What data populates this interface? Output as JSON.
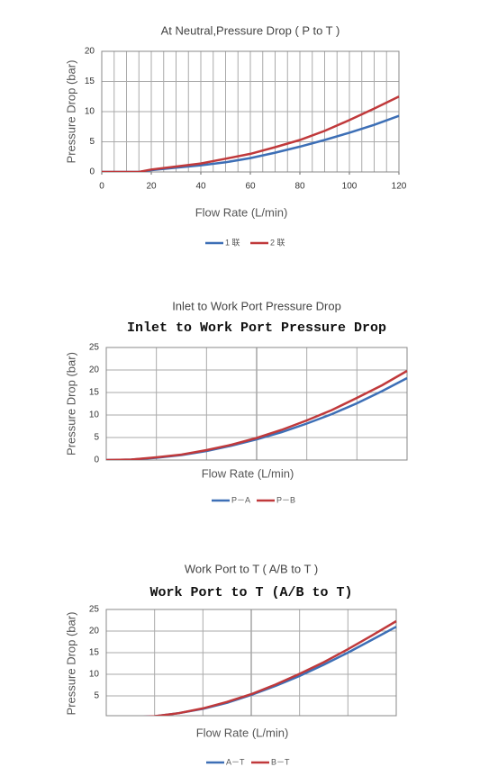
{
  "chart_data": [
    {
      "type": "line",
      "title": "At Neutral,Pressure Drop ( P to T )",
      "x_label": "Flow Rate (L/min)",
      "y_label": "Pressure Drop (bar)",
      "x": [
        0,
        15,
        20,
        30,
        40,
        50,
        60,
        70,
        80,
        90,
        100,
        110,
        120
      ],
      "series": [
        {
          "name": "1 联",
          "color": "#3d6fb6",
          "values": [
            0,
            0,
            0.3,
            0.7,
            1.1,
            1.6,
            2.3,
            3.2,
            4.2,
            5.3,
            6.5,
            7.8,
            9.3
          ]
        },
        {
          "name": "2 联",
          "color": "#c0393b",
          "values": [
            0,
            0,
            0.4,
            0.9,
            1.4,
            2.2,
            3.0,
            4.1,
            5.3,
            6.8,
            8.6,
            10.5,
            12.5
          ]
        }
      ],
      "xlim": [
        0,
        120
      ],
      "xticks": [
        0,
        20,
        40,
        60,
        80,
        100,
        120
      ],
      "ylim": [
        0,
        20
      ],
      "yticks": [
        0,
        5,
        10,
        15,
        20
      ],
      "grid": true
    },
    {
      "type": "line",
      "title": "Inlet to Work Port Pressure Drop",
      "subtitle": "Inlet to Work Port Pressure Drop",
      "x_label": "Flow Rate (L/min)",
      "y_label": "Pressure Drop (bar)",
      "categories": [
        null,
        null,
        null,
        null,
        null,
        null,
        null,
        null,
        null,
        null,
        null,
        null,
        null
      ],
      "series": [
        {
          "name": "P－A",
          "color": "#3d6fb6",
          "values": [
            0,
            0.1,
            0.5,
            1.1,
            2.0,
            3.2,
            4.6,
            6.2,
            8.1,
            10.2,
            12.6,
            15.3,
            18.2
          ]
        },
        {
          "name": "P－B",
          "color": "#c0393b",
          "values": [
            0,
            0.1,
            0.6,
            1.2,
            2.2,
            3.4,
            4.9,
            6.7,
            8.8,
            11.1,
            13.8,
            16.6,
            19.8
          ]
        }
      ],
      "ylim": [
        0,
        25
      ],
      "yticks": [
        0,
        5,
        10,
        15,
        20,
        25
      ],
      "grid": true
    },
    {
      "type": "line",
      "title": "Work Port to T ( A/B to T )",
      "subtitle": "Work Port to T (A/B to T)",
      "x_label": "Flow Rate (L/min)",
      "y_label": "Pressure Drop (bar)",
      "categories": [
        null,
        null,
        null,
        null,
        null,
        null,
        null,
        null,
        null,
        null,
        null,
        null,
        null
      ],
      "series": [
        {
          "name": "A－T",
          "color": "#3d6fb6",
          "values": [
            0,
            0,
            0.3,
            1.0,
            2.0,
            3.4,
            5.2,
            7.3,
            9.6,
            12.2,
            15.0,
            18.0,
            21.0
          ]
        },
        {
          "name": "B－T",
          "color": "#c0393b",
          "values": [
            0,
            0,
            0.3,
            1.0,
            2.1,
            3.6,
            5.4,
            7.6,
            10.1,
            12.8,
            15.8,
            19.0,
            22.3
          ]
        }
      ],
      "ylim": [
        0,
        25
      ],
      "yticks": [
        5,
        10,
        15,
        20,
        25
      ],
      "grid": true
    }
  ]
}
